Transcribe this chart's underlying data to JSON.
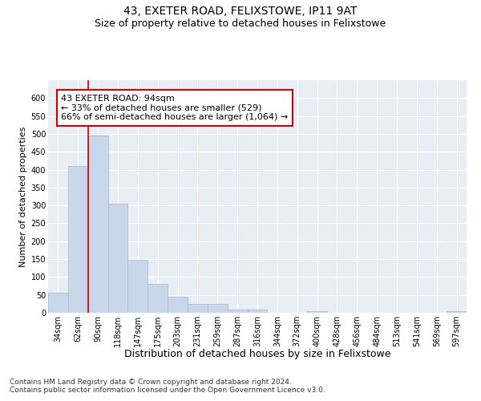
{
  "title": "43, EXETER ROAD, FELIXSTOWE, IP11 9AT",
  "subtitle": "Size of property relative to detached houses in Felixstowe",
  "xlabel": "Distribution of detached houses by size in Felixstowe",
  "ylabel": "Number of detached properties",
  "categories": [
    "34sqm",
    "62sqm",
    "90sqm",
    "118sqm",
    "147sqm",
    "175sqm",
    "203sqm",
    "231sqm",
    "259sqm",
    "287sqm",
    "316sqm",
    "344sqm",
    "372sqm",
    "400sqm",
    "428sqm",
    "456sqm",
    "484sqm",
    "513sqm",
    "541sqm",
    "569sqm",
    "597sqm"
  ],
  "values": [
    55,
    410,
    495,
    305,
    148,
    80,
    44,
    25,
    25,
    10,
    8,
    0,
    0,
    5,
    0,
    0,
    0,
    0,
    0,
    0,
    5
  ],
  "bar_color": "#c8d8ea",
  "bar_edge_color": "#a8c0d8",
  "vline_x_index": 2,
  "vline_color": "#cc0000",
  "annotation_text": "43 EXETER ROAD: 94sqm\n← 33% of detached houses are smaller (529)\n66% of semi-detached houses are larger (1,064) →",
  "annotation_box_color": "#ffffff",
  "annotation_box_edge": "#cc0000",
  "ylim": [
    0,
    650
  ],
  "yticks": [
    0,
    50,
    100,
    150,
    200,
    250,
    300,
    350,
    400,
    450,
    500,
    550,
    600
  ],
  "grid_color": "#ffffff",
  "background_color": "#e8eef4",
  "footer_line1": "Contains HM Land Registry data © Crown copyright and database right 2024.",
  "footer_line2": "Contains public sector information licensed under the Open Government Licence v3.0.",
  "title_fontsize": 10,
  "subtitle_fontsize": 9,
  "xlabel_fontsize": 9,
  "ylabel_fontsize": 8,
  "tick_fontsize": 7,
  "annotation_fontsize": 8,
  "footer_fontsize": 6.5
}
